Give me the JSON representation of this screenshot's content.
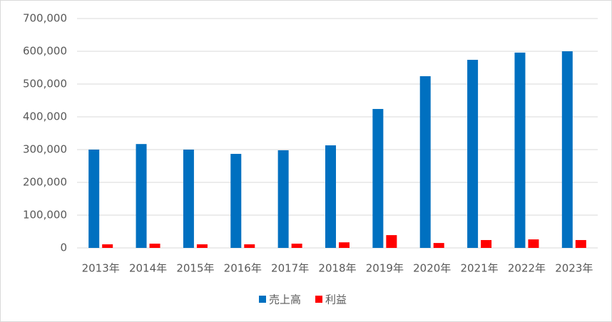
{
  "chart_data": {
    "type": "bar",
    "categories": [
      "2013年",
      "2014年",
      "2015年",
      "2016年",
      "2017年",
      "2018年",
      "2019年",
      "2020年",
      "2021年",
      "2022年",
      "2023年"
    ],
    "series": [
      {
        "name": "売上高",
        "color": "#0070c0",
        "values": [
          300000,
          317000,
          300000,
          287000,
          298000,
          313000,
          424000,
          524000,
          574000,
          596000,
          600000
        ]
      },
      {
        "name": "利益",
        "color": "#ff0000",
        "values": [
          11000,
          13000,
          11000,
          11000,
          13000,
          17000,
          39000,
          15000,
          24000,
          26000,
          24000
        ]
      }
    ],
    "ylim": [
      0,
      700000
    ],
    "yticks": [
      0,
      {
        "value": 100000,
        "label": "100,000"
      },
      {
        "value": 200000,
        "label": "200,000"
      },
      {
        "value": 300000,
        "label": "300,000"
      },
      {
        "value": 400000,
        "label": "400,000"
      },
      {
        "value": 500000,
        "label": "500,000"
      },
      {
        "value": 600000,
        "label": "600,000"
      },
      {
        "value": 700000,
        "label": "700,000"
      }
    ],
    "grid": true,
    "legend": "bottom"
  }
}
